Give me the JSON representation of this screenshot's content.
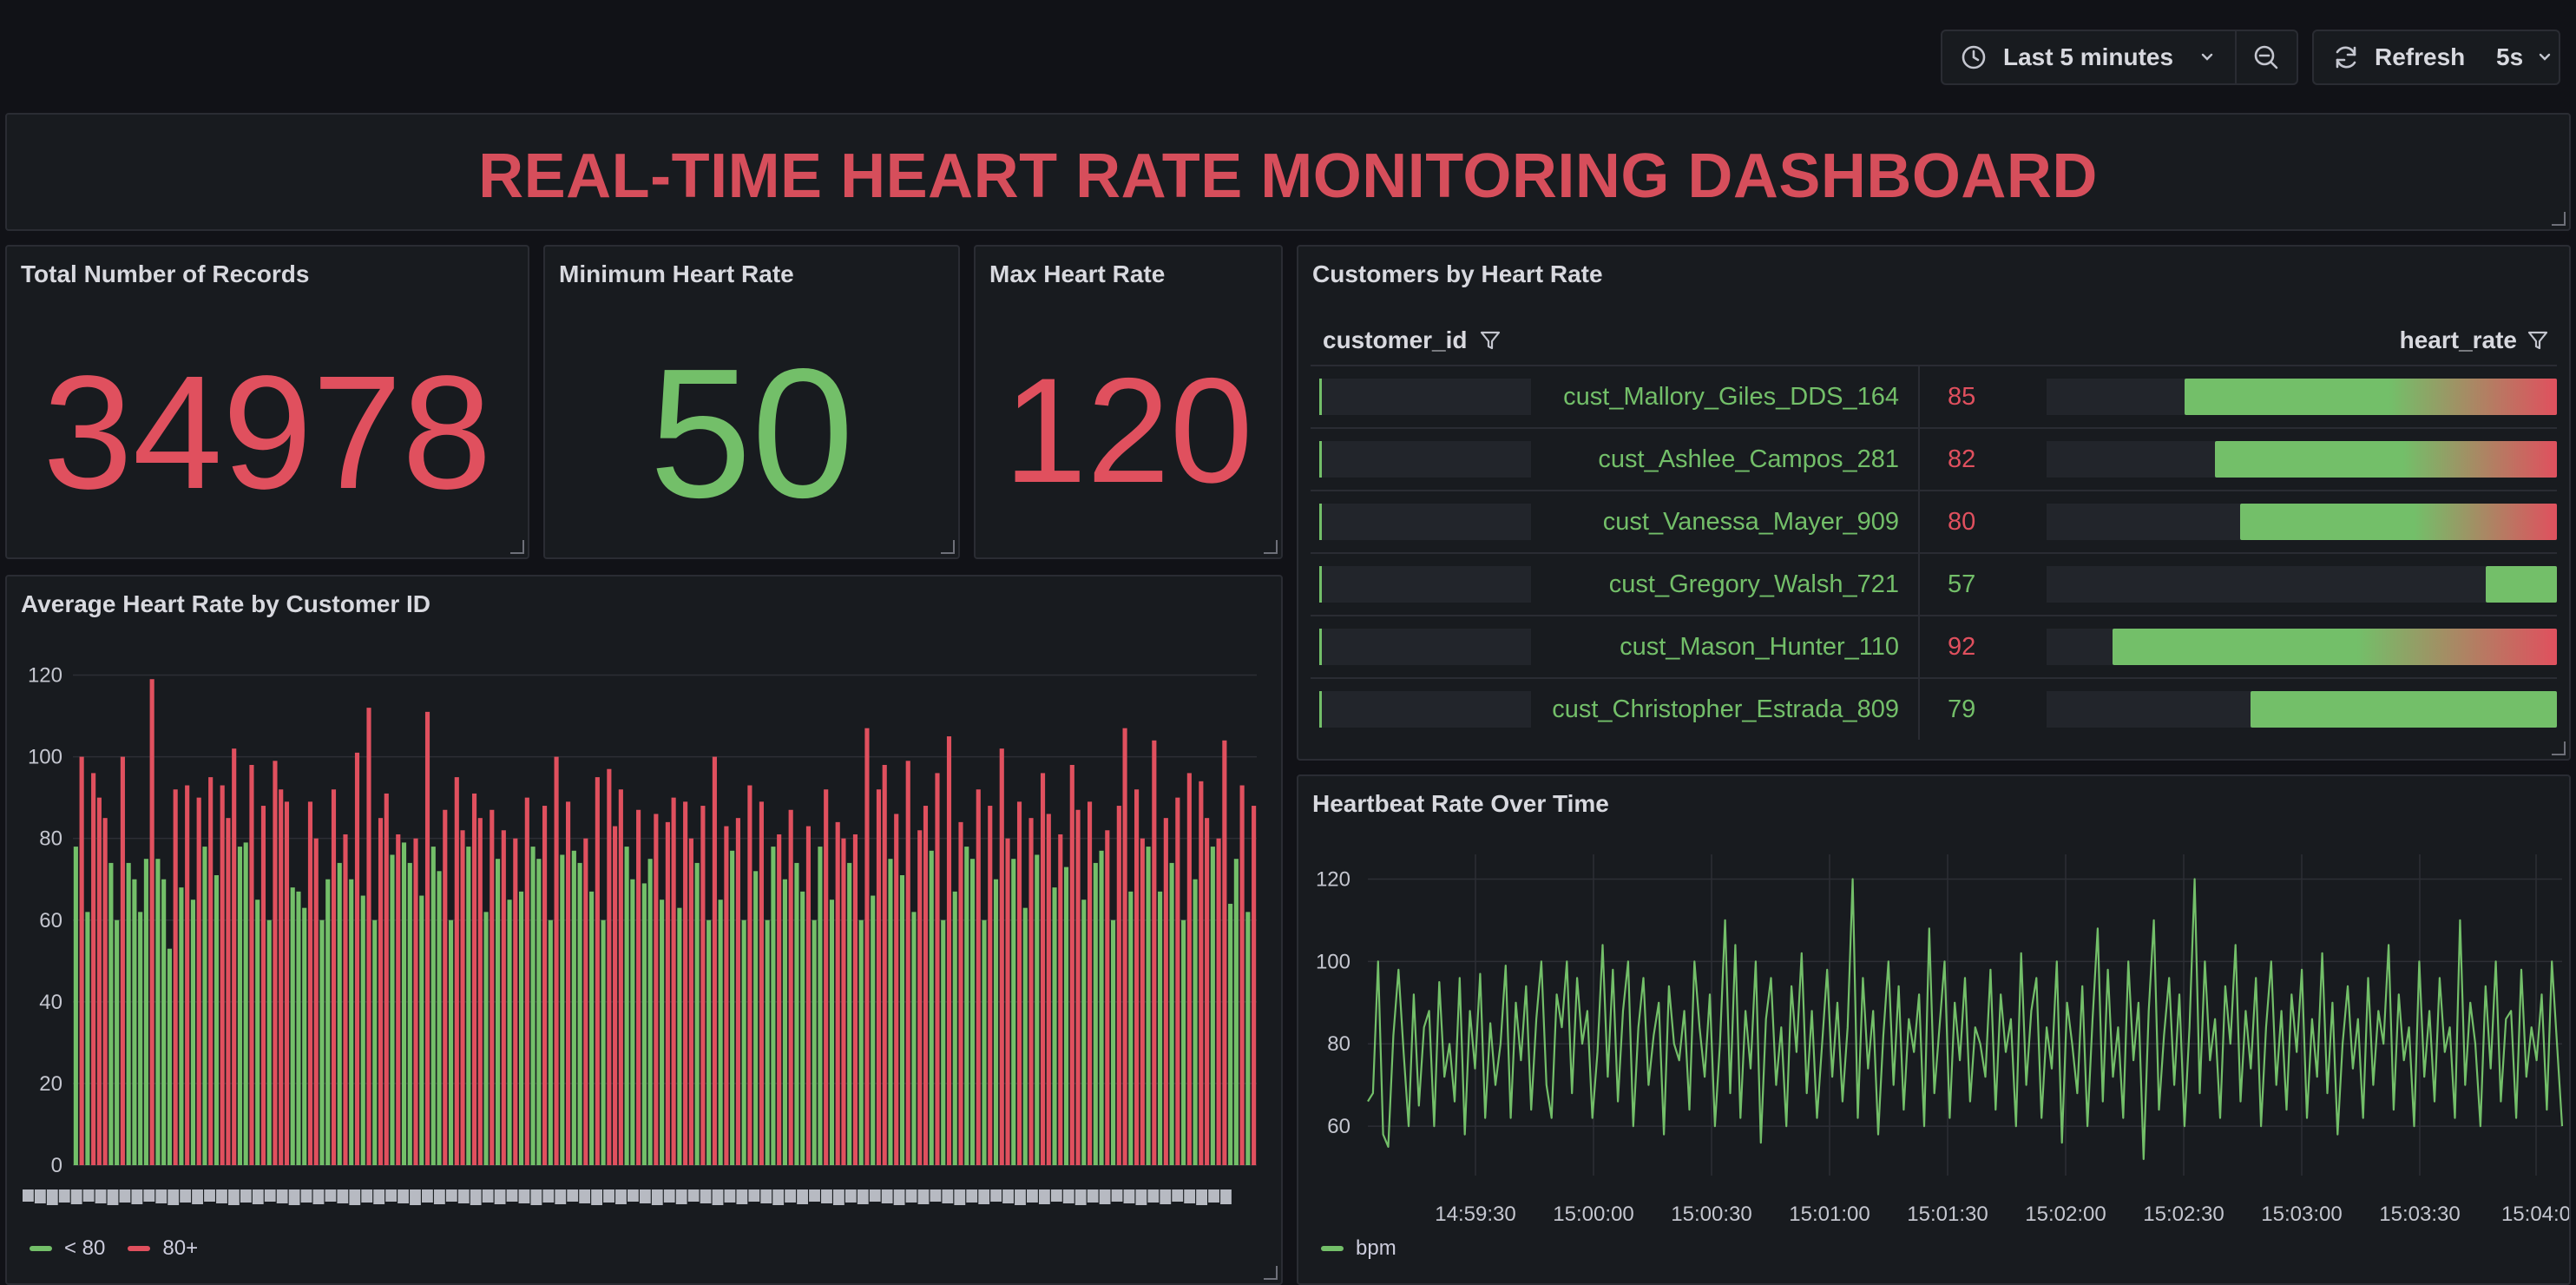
{
  "toolbar": {
    "time_range_label": "Last 5 minutes",
    "refresh_label": "Refresh",
    "refresh_interval": "5s"
  },
  "header": {
    "title": "REAL-TIME HEART RATE MONITORING DASHBOARD"
  },
  "stats": {
    "total": {
      "title": "Total Number of Records",
      "value": "34978",
      "color": "#e0505e"
    },
    "min": {
      "title": "Minimum Heart Rate",
      "value": "50",
      "color": "#73bf69"
    },
    "max": {
      "title": "Max Heart Rate",
      "value": "120",
      "color": "#e0505e"
    }
  },
  "colors": {
    "green": "#73bf69",
    "red": "#e0505e"
  },
  "table": {
    "title": "Customers by Heart Rate",
    "columns": [
      "customer_id",
      "heart_rate"
    ],
    "rows": [
      {
        "customer_id": "cust_Mallory_Giles_DDS_164",
        "heart_rate": "85",
        "color": "#e0505e",
        "fraction": 0.73
      },
      {
        "customer_id": "cust_Ashlee_Campos_281",
        "heart_rate": "82",
        "color": "#e0505e",
        "fraction": 0.67
      },
      {
        "customer_id": "cust_Vanessa_Mayer_909",
        "heart_rate": "80",
        "color": "#e0505e",
        "fraction": 0.62
      },
      {
        "customer_id": "cust_Gregory_Walsh_721",
        "heart_rate": "57",
        "color": "#73bf69",
        "fraction": 0.14
      },
      {
        "customer_id": "cust_Mason_Hunter_110",
        "heart_rate": "92",
        "color": "#e0505e",
        "fraction": 0.87
      },
      {
        "customer_id": "cust_Christopher_Estrada_809",
        "heart_rate": "79",
        "color": "#73bf69",
        "fraction": 0.6
      }
    ]
  },
  "bar_panel": {
    "title": "Average Heart Rate by Customer ID"
  },
  "line_panel": {
    "title": "Heartbeat Rate Over Time"
  },
  "chart_data": [
    {
      "type": "bar",
      "yticks": [
        "0",
        "20",
        "40",
        "60",
        "80",
        "100",
        "120"
      ],
      "ylim": [
        0,
        125
      ],
      "grid": true,
      "legend_placement": "bottom-left",
      "series": [
        {
          "name": "< 80",
          "color": "#73bf69"
        },
        {
          "name": "80+",
          "color": "#e0505e"
        }
      ],
      "values": [
        78,
        100,
        62,
        96,
        90,
        85,
        74,
        60,
        100,
        74,
        70,
        62,
        75,
        119,
        75,
        70,
        53,
        92,
        68,
        93,
        65,
        90,
        78,
        95,
        71,
        93,
        85,
        102,
        78,
        79,
        98,
        65,
        88,
        60,
        99,
        92,
        89,
        68,
        67,
        63,
        89,
        80,
        60,
        70,
        92,
        74,
        81,
        70,
        101,
        66,
        112,
        60,
        85,
        91,
        76,
        81,
        79,
        74,
        80,
        66,
        111,
        78,
        72,
        87,
        60,
        95,
        82,
        78,
        91,
        85,
        62,
        87,
        75,
        82,
        65,
        80,
        67,
        90,
        78,
        75,
        88,
        60,
        100,
        76,
        89,
        77,
        74,
        80,
        67,
        95,
        60,
        97,
        83,
        92,
        78,
        70,
        87,
        69,
        75,
        86,
        65,
        84,
        90,
        63,
        89,
        80,
        74,
        88,
        60,
        100,
        65,
        83,
        77,
        85,
        60,
        93,
        72,
        89,
        60,
        78,
        81,
        70,
        87,
        74,
        67,
        83,
        60,
        78,
        92,
        65,
        84,
        80,
        74,
        81,
        60,
        107,
        66,
        92,
        98,
        75,
        86,
        71,
        99,
        62,
        82,
        88,
        77,
        96,
        60,
        105,
        67,
        84,
        78,
        75,
        92,
        60,
        88,
        70,
        102,
        80,
        75,
        89,
        63,
        85,
        76,
        96,
        86,
        68,
        81,
        73,
        98,
        87,
        65,
        89,
        74,
        77,
        82,
        60,
        88,
        107,
        67,
        92,
        80,
        78,
        104,
        67,
        85,
        74,
        90,
        60,
        96,
        70,
        94,
        85,
        78,
        80,
        104,
        64,
        75,
        93,
        62,
        88
      ],
      "xtick_count": 100
    },
    {
      "type": "line",
      "yticks": [
        "60",
        "80",
        "100",
        "120"
      ],
      "ylim": [
        48,
        126
      ],
      "xticks": [
        "14:59:30",
        "15:00:00",
        "15:00:30",
        "15:01:00",
        "15:01:30",
        "15:02:00",
        "15:02:30",
        "15:03:00",
        "15:03:30",
        "15:04:0"
      ],
      "grid": true,
      "legend_placement": "bottom-left",
      "series": [
        {
          "name": "bpm",
          "color": "#73bf69"
        }
      ],
      "values": [
        66,
        68,
        100,
        58,
        55,
        82,
        98,
        78,
        60,
        92,
        65,
        84,
        88,
        60,
        95,
        72,
        80,
        66,
        96,
        58,
        88,
        74,
        97,
        62,
        85,
        70,
        80,
        99,
        62,
        90,
        76,
        94,
        64,
        86,
        100,
        70,
        62,
        92,
        84,
        100,
        68,
        96,
        80,
        88,
        62,
        78,
        104,
        72,
        98,
        66,
        88,
        100,
        60,
        84,
        96,
        70,
        82,
        90,
        58,
        94,
        80,
        76,
        88,
        64,
        100,
        84,
        72,
        92,
        60,
        80,
        110,
        68,
        104,
        62,
        88,
        74,
        100,
        56,
        86,
        96,
        70,
        84,
        60,
        94,
        78,
        102,
        68,
        88,
        62,
        80,
        98,
        72,
        90,
        66,
        84,
        120,
        62,
        96,
        74,
        88,
        58,
        82,
        100,
        70,
        94,
        64,
        86,
        78,
        92,
        60,
        108,
        68,
        84,
        100,
        62,
        90,
        76,
        96,
        66,
        84,
        80,
        72,
        98,
        64,
        92,
        78,
        86,
        60,
        102,
        70,
        88,
        96,
        62,
        84,
        74,
        100,
        56,
        90,
        80,
        68,
        94,
        60,
        86,
        108,
        66,
        98,
        72,
        84,
        62,
        100,
        76,
        90,
        52,
        88,
        110,
        64,
        82,
        96,
        70,
        92,
        60,
        84,
        120,
        68,
        100,
        76,
        86,
        62,
        94,
        80,
        104,
        66,
        88,
        74,
        96,
        60,
        84,
        100,
        70,
        88,
        64,
        92,
        78,
        98,
        62,
        86,
        72,
        102,
        68,
        90,
        58,
        80,
        94,
        74,
        86,
        62,
        96,
        70,
        88,
        80,
        104,
        64,
        92,
        76,
        84,
        60,
        100,
        72,
        88,
        66,
        96,
        78,
        84,
        62,
        110,
        70,
        90,
        80,
        60,
        94,
        74,
        100,
        66,
        86,
        88,
        62,
        98,
        72,
        84,
        76,
        92,
        64,
        100,
        80,
        60
      ]
    }
  ]
}
